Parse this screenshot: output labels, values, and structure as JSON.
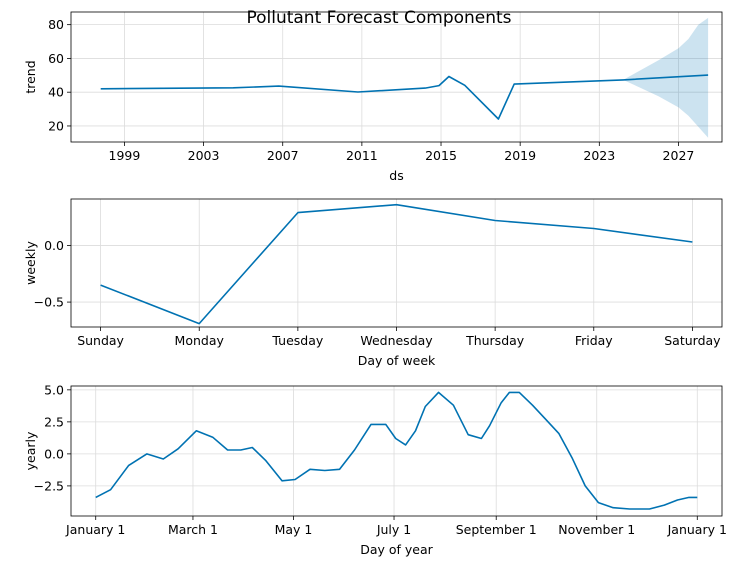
{
  "figure": {
    "title": "Pollutant Forecast Components"
  },
  "colors": {
    "line": "#0072B2",
    "band": "#0072B2",
    "grid": "#dcdcdc",
    "axis": "#000000"
  },
  "chart_data": [
    {
      "type": "line",
      "name": "trend",
      "xlabel": "ds",
      "ylabel": "trend",
      "xlim": [
        1996.3,
        2029.2
      ],
      "ylim": [
        10.5,
        87.5
      ],
      "x_ticks": [
        1999,
        2003,
        2007,
        2011,
        2015,
        2019,
        2023,
        2027
      ],
      "y_ticks": [
        20,
        40,
        60,
        80
      ],
      "grid": true,
      "x": [
        1997.8,
        2004.5,
        2006.8,
        2010.8,
        2014.2,
        2014.9,
        2015.4,
        2016.2,
        2017.9,
        2018.7,
        2024.2,
        2028.5
      ],
      "y": [
        42,
        42.6,
        43.6,
        40.1,
        42.4,
        43.9,
        49.3,
        44.1,
        24.1,
        44.8,
        47.3,
        50.1
      ],
      "uncertainty": {
        "x": [
          2024.2,
          2025.0,
          2026.0,
          2027.0,
          2027.5,
          2028.0,
          2028.5
        ],
        "lower": [
          47.3,
          43.0,
          37.5,
          31.0,
          26.0,
          19.5,
          13.0
        ],
        "upper": [
          47.3,
          52.5,
          59.0,
          66.0,
          71.5,
          80.0,
          84.0
        ]
      }
    },
    {
      "type": "line",
      "name": "weekly",
      "xlabel": "Day of week",
      "ylabel": "weekly",
      "categories": [
        "Sunday",
        "Monday",
        "Tuesday",
        "Wednesday",
        "Thursday",
        "Friday",
        "Saturday"
      ],
      "values": [
        -0.35,
        -0.69,
        0.29,
        0.36,
        0.22,
        0.15,
        0.03
      ],
      "ylim": [
        -0.72,
        0.41
      ],
      "y_ticks": [
        -0.5,
        0.0
      ],
      "y_tick_labels": [
        "−0.5",
        "0.0"
      ],
      "grid": true
    },
    {
      "type": "line",
      "name": "yearly",
      "xlabel": "Day of year",
      "ylabel": "yearly",
      "xlim": [
        -15,
        380
      ],
      "ylim": [
        -4.85,
        5.3
      ],
      "x_ticks": [
        0,
        59,
        120,
        181,
        243,
        304,
        365
      ],
      "x_tick_labels": [
        "January 1",
        "March 1",
        "May 1",
        "July 1",
        "September 1",
        "November 1",
        "January 1"
      ],
      "y_ticks": [
        -2.5,
        0.0,
        2.5,
        5.0
      ],
      "y_tick_labels": [
        "−2.5",
        "0.0",
        "2.5",
        "5.0"
      ],
      "grid": true,
      "x": [
        0,
        9,
        20,
        31,
        41,
        50,
        61,
        71,
        80,
        88,
        95,
        103,
        113,
        121,
        130,
        139,
        148,
        157,
        167,
        176,
        182,
        188,
        194,
        200,
        208,
        217,
        226,
        234,
        239,
        246,
        251,
        257,
        265,
        273,
        281,
        289,
        297,
        305,
        314,
        324,
        336,
        345,
        353,
        360,
        365
      ],
      "y": [
        -3.4,
        -2.8,
        -0.9,
        0.0,
        -0.4,
        0.4,
        1.8,
        1.3,
        0.3,
        0.3,
        0.5,
        -0.5,
        -2.1,
        -2.0,
        -1.2,
        -1.3,
        -1.2,
        0.3,
        2.3,
        2.3,
        1.2,
        0.7,
        1.8,
        3.7,
        4.8,
        3.8,
        1.5,
        1.2,
        2.2,
        4.0,
        4.8,
        4.8,
        3.8,
        2.7,
        1.6,
        -0.3,
        -2.5,
        -3.8,
        -4.2,
        -4.3,
        -4.3,
        -4.0,
        -3.6,
        -3.4,
        -3.4
      ]
    }
  ]
}
